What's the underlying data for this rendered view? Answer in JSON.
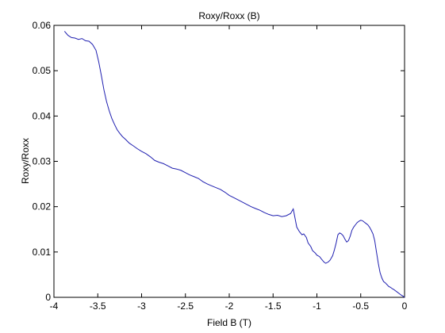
{
  "chart_data": {
    "type": "line",
    "title": "Roxy/Roxx (B)",
    "xlabel": "Field B (T)",
    "ylabel": "Roxy/Roxx",
    "xlim": [
      -4,
      0
    ],
    "ylim": [
      0,
      0.06
    ],
    "x_ticks": [
      -4,
      -3.5,
      -3,
      -2.5,
      -2,
      -1.5,
      -1,
      -0.5,
      0
    ],
    "x_tick_labels": [
      "-4",
      "-3.5",
      "-3",
      "-2.5",
      "-2",
      "-1.5",
      "-1",
      "-0.5",
      "0"
    ],
    "y_ticks": [
      0,
      0.01,
      0.02,
      0.03,
      0.04,
      0.05,
      0.06
    ],
    "y_tick_labels": [
      "0",
      "0.01",
      "0.02",
      "0.03",
      "0.04",
      "0.05",
      "0.06"
    ],
    "grid": false,
    "legend": "none",
    "line_color": "#1f1fb0",
    "series": [
      {
        "x": [
          -3.88,
          -3.84,
          -3.8,
          -3.76,
          -3.72,
          -3.68,
          -3.64,
          -3.6,
          -3.56,
          -3.52,
          -3.49,
          -3.46,
          -3.43,
          -3.4,
          -3.37,
          -3.34,
          -3.31,
          -3.28,
          -3.25,
          -3.22,
          -3.18,
          -3.14,
          -3.1,
          -3.05,
          -3.0,
          -2.95,
          -2.9,
          -2.85,
          -2.8,
          -2.75,
          -2.7,
          -2.65,
          -2.6,
          -2.55,
          -2.5,
          -2.45,
          -2.4,
          -2.35,
          -2.3,
          -2.25,
          -2.2,
          -2.15,
          -2.1,
          -2.05,
          -2.0,
          -1.95,
          -1.9,
          -1.85,
          -1.8,
          -1.75,
          -1.7,
          -1.65,
          -1.6,
          -1.55,
          -1.5,
          -1.45,
          -1.4,
          -1.35,
          -1.3,
          -1.27,
          -1.25,
          -1.23,
          -1.2,
          -1.17,
          -1.15,
          -1.12,
          -1.1,
          -1.07,
          -1.05,
          -1.02,
          -1.0,
          -0.97,
          -0.95,
          -0.92,
          -0.9,
          -0.87,
          -0.85,
          -0.82,
          -0.8,
          -0.78,
          -0.76,
          -0.74,
          -0.72,
          -0.7,
          -0.68,
          -0.66,
          -0.64,
          -0.62,
          -0.6,
          -0.58,
          -0.56,
          -0.54,
          -0.52,
          -0.5,
          -0.48,
          -0.46,
          -0.44,
          -0.42,
          -0.4,
          -0.38,
          -0.36,
          -0.34,
          -0.32,
          -0.3,
          -0.28,
          -0.26,
          -0.24,
          -0.22,
          -0.2,
          -0.18,
          -0.16,
          -0.14,
          -0.12,
          -0.1,
          -0.08,
          -0.06,
          -0.04,
          -0.02,
          0.0
        ],
        "y": [
          0.0587,
          0.0578,
          0.0573,
          0.0572,
          0.0569,
          0.0571,
          0.0566,
          0.0565,
          0.0558,
          0.0545,
          0.052,
          0.049,
          0.0458,
          0.0432,
          0.0412,
          0.0395,
          0.0382,
          0.037,
          0.0362,
          0.0355,
          0.0348,
          0.034,
          0.0335,
          0.0328,
          0.0322,
          0.0317,
          0.031,
          0.0302,
          0.0298,
          0.0295,
          0.029,
          0.0285,
          0.0283,
          0.028,
          0.0275,
          0.027,
          0.0266,
          0.0262,
          0.0255,
          0.025,
          0.0246,
          0.0242,
          0.0238,
          0.0232,
          0.0225,
          0.022,
          0.0215,
          0.021,
          0.0205,
          0.02,
          0.0196,
          0.0192,
          0.0187,
          0.0183,
          0.018,
          0.0181,
          0.0178,
          0.018,
          0.0185,
          0.0195,
          0.0175,
          0.0155,
          0.0145,
          0.0138,
          0.014,
          0.0132,
          0.012,
          0.0112,
          0.0103,
          0.0098,
          0.0093,
          0.009,
          0.0085,
          0.0078,
          0.0075,
          0.0078,
          0.0082,
          0.0092,
          0.0105,
          0.012,
          0.0138,
          0.0142,
          0.014,
          0.0136,
          0.0128,
          0.0122,
          0.0125,
          0.0135,
          0.0148,
          0.0155,
          0.016,
          0.0165,
          0.0168,
          0.017,
          0.0169,
          0.0166,
          0.0163,
          0.016,
          0.0155,
          0.0148,
          0.014,
          0.0125,
          0.01,
          0.0075,
          0.0055,
          0.0043,
          0.0035,
          0.0032,
          0.0028,
          0.0024,
          0.0022,
          0.0019,
          0.0017,
          0.0014,
          0.0011,
          0.0008,
          0.0005,
          0.0003,
          0.0
        ]
      }
    ]
  }
}
